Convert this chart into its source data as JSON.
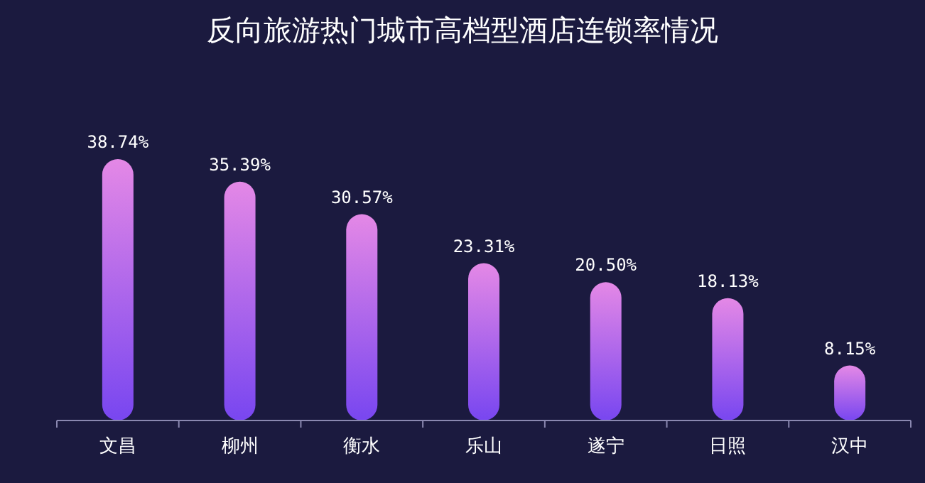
{
  "chart_data": {
    "type": "bar",
    "title": "反向旅游热门城市高档型酒店连锁率情况",
    "categories": [
      "文昌",
      "柳州",
      "衡水",
      "乐山",
      "遂宁",
      "日照",
      "汉中"
    ],
    "values": [
      38.74,
      35.39,
      30.57,
      23.31,
      20.5,
      18.13,
      8.15
    ],
    "value_labels": [
      "38.74%",
      "35.39%",
      "30.57%",
      "23.31%",
      "20.50%",
      "18.13%",
      "8.15%"
    ],
    "color": "#e488e6",
    "grid": false
  }
}
